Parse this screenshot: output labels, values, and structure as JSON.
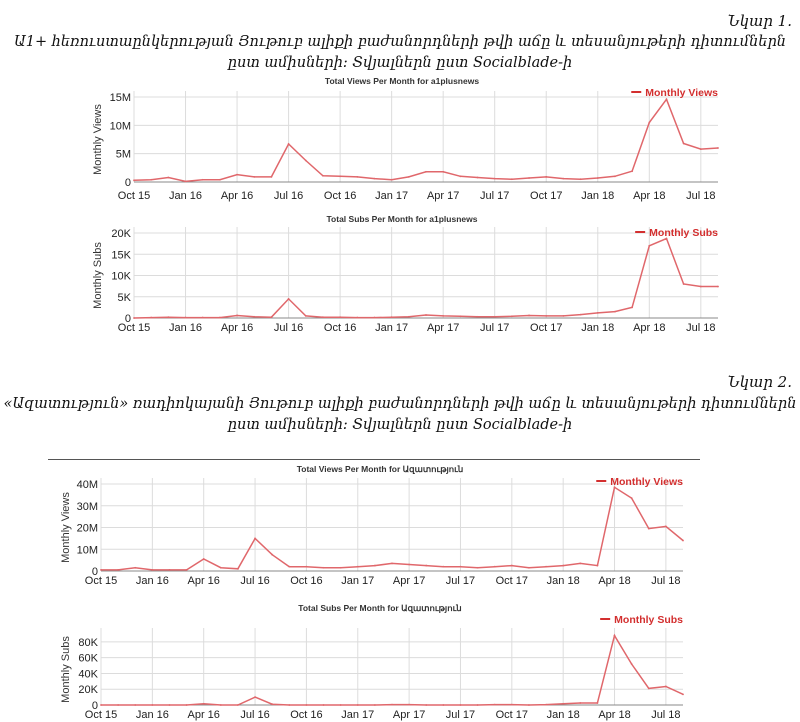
{
  "figures": [
    {
      "label": "Նկար 1.",
      "caption_lines": [
        "Ա1+ հեռուստաընկերության Յութուբ ալիքի բաժանորդների թվի աճը և տեսանյութերի դիտումներն",
        "ըստ ամիսների: Տվյալներն ըստ Socialblade-ի"
      ]
    },
    {
      "label": "Նկար 2.",
      "caption_lines": [
        "«Ազատություն» ռադիոկայանի Յութուբ ալիքի բաժանորդների թվի աճը և տեսանյութերի դիտումներն",
        "ըստ ամիսների: Տվյալներն ըստ Socialblade-ի"
      ]
    }
  ],
  "chart_data": [
    {
      "type": "line",
      "title": "Total Views Per Month for a1plusnews",
      "ylabel": "Monthly Views",
      "legend": "top-right",
      "ylim": [
        0,
        15000000
      ],
      "yticks": [
        0,
        5000000,
        10000000,
        15000000
      ],
      "ytick_labels": [
        "0",
        "5M",
        "10M",
        "15M"
      ],
      "xtick_labels": [
        "Oct 15",
        "Jan 16",
        "Apr 16",
        "Jul 16",
        "Oct 16",
        "Jan 17",
        "Apr 17",
        "Jul 17",
        "Oct 17",
        "Jan 18",
        "Apr 18",
        "Jul 18"
      ],
      "grid": true,
      "series": [
        {
          "name": "Monthly Views",
          "color": "#e0676b",
          "values": [
            300000,
            400000,
            800000,
            100000,
            400000,
            400000,
            1300000,
            900000,
            900000,
            6700000,
            3800000,
            1100000,
            1000000,
            900000,
            600000,
            400000,
            900000,
            1800000,
            1800000,
            1000000,
            800000,
            600000,
            500000,
            700000,
            900000,
            600000,
            500000,
            700000,
            1000000,
            1900000,
            10500000,
            14600000,
            6800000,
            5800000,
            6000000
          ]
        }
      ]
    },
    {
      "type": "line",
      "title": "Total Subs Per Month for a1plusnews",
      "ylabel": "Monthly Subs",
      "legend": "top-right",
      "ylim": [
        0,
        20000
      ],
      "yticks": [
        0,
        5000,
        10000,
        15000,
        20000
      ],
      "ytick_labels": [
        "0",
        "5K",
        "10K",
        "15K",
        "20K"
      ],
      "xtick_labels": [
        "Oct 15",
        "Jan 16",
        "Apr 16",
        "Jul 16",
        "Oct 16",
        "Jan 17",
        "Apr 17",
        "Jul 17",
        "Oct 17",
        "Jan 18",
        "Apr 18",
        "Jul 18"
      ],
      "grid": true,
      "series": [
        {
          "name": "Monthly Subs",
          "color": "#e0676b",
          "values": [
            0,
            100,
            200,
            100,
            100,
            100,
            600,
            300,
            200,
            4500,
            500,
            200,
            200,
            100,
            100,
            200,
            300,
            700,
            500,
            400,
            300,
            300,
            400,
            600,
            500,
            500,
            800,
            1200,
            1500,
            2500,
            17000,
            18700,
            8000,
            7400,
            7400
          ]
        }
      ]
    },
    {
      "type": "line",
      "title": "Total Views Per Month for Ազատություն",
      "ylabel": "Monthly Views",
      "legend": "top-right",
      "ylim": [
        0,
        40000000
      ],
      "yticks": [
        0,
        10000000,
        20000000,
        30000000,
        40000000
      ],
      "ytick_labels": [
        "0",
        "10M",
        "20M",
        "30M",
        "40M"
      ],
      "xtick_labels": [
        "Oct 15",
        "Jan 16",
        "Apr 16",
        "Jul 16",
        "Oct 16",
        "Jan 17",
        "Apr 17",
        "Jul 17",
        "Oct 17",
        "Jan 18",
        "Apr 18",
        "Jul 18"
      ],
      "grid": true,
      "series": [
        {
          "name": "Monthly Views",
          "color": "#e0676b",
          "values": [
            500000,
            500000,
            1500000,
            500000,
            500000,
            500000,
            5500000,
            1500000,
            1000000,
            15000000,
            7500000,
            2000000,
            2000000,
            1500000,
            1500000,
            2000000,
            2500000,
            3500000,
            3000000,
            2500000,
            2000000,
            2000000,
            1500000,
            2000000,
            2500000,
            1500000,
            2000000,
            2500000,
            3500000,
            2500000,
            38500000,
            33500000,
            19500000,
            20500000,
            14000000
          ]
        }
      ]
    },
    {
      "type": "line",
      "title": "Total Subs Per Month for Ազատություն",
      "ylabel": "Monthly Subs",
      "legend": "top-right",
      "ylim": [
        0,
        90000
      ],
      "yticks": [
        0,
        20000,
        40000,
        60000,
        80000
      ],
      "ytick_labels": [
        "0",
        "20K",
        "40K",
        "60K",
        "80K"
      ],
      "xtick_labels": [
        "Oct 15",
        "Jan 16",
        "Apr 16",
        "Jul 16",
        "Oct 16",
        "Jan 17",
        "Apr 17",
        "Jul 17",
        "Oct 17",
        "Jan 18",
        "Apr 18",
        "Jul 18"
      ],
      "grid": true,
      "series": [
        {
          "name": "Monthly Subs",
          "color": "#e0676b",
          "values": [
            0,
            0,
            0,
            0,
            0,
            0,
            1500,
            0,
            0,
            10000,
            1000,
            0,
            0,
            0,
            0,
            0,
            0,
            500,
            500,
            0,
            0,
            0,
            0,
            500,
            500,
            0,
            500,
            1500,
            2500,
            2500,
            88000,
            52000,
            21000,
            23500,
            13500
          ]
        }
      ]
    }
  ]
}
